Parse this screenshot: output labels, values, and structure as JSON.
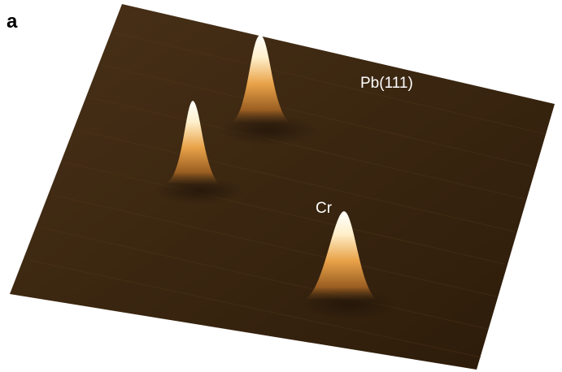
{
  "panel_label": "a",
  "labels": {
    "substrate": "Pb(111)",
    "adatom": "Cr"
  }
}
